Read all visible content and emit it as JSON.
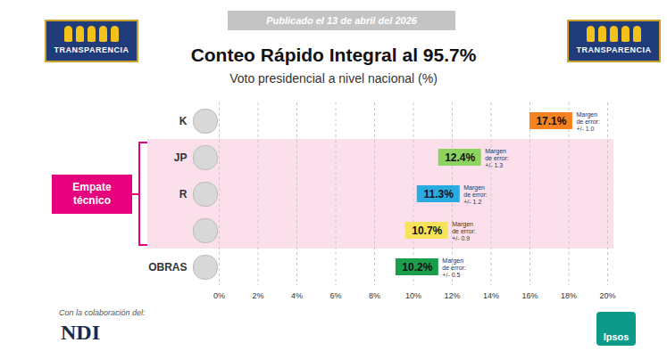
{
  "chart_data": {
    "type": "scatter",
    "marker": "square",
    "orientation": "horizontal",
    "note": "Publicado el 13 de abril del 2026",
    "brand": "TRANSPARENCIA",
    "title": "Conteo Rápido Integral al 95.7%",
    "subtitle": "Voto presidencial a nivel nacional (%)",
    "annotation": "Empate técnico",
    "footer": "Con la colaboración del:",
    "credits": [
      "NDI",
      "Ipsos"
    ],
    "categories": [
      "K",
      "JP",
      "R",
      null,
      "OBRAS"
    ],
    "values": [
      17.1,
      12.4,
      11.3,
      10.7,
      10.2
    ],
    "value_labels": [
      "17.1%",
      "12.4%",
      "11.3%",
      "10.7%",
      "10.2%"
    ],
    "error_labels": [
      "Margen de error: +/- 1.0",
      "Margen de error: +/- 1.3",
      "Margen de error: +/- 1.2",
      "Margen de error: +/- 0.9",
      "Margen de error: +/- 0.5"
    ],
    "colors": [
      "#f58220",
      "#8dd35f",
      "#29abe2",
      "#f7e35a",
      "#1b9e4b"
    ],
    "xlim": [
      0,
      20
    ],
    "xticks": [
      {
        "value": 0,
        "label": "0%"
      },
      {
        "value": 2,
        "label": "2%"
      },
      {
        "value": 4,
        "label": "4%"
      },
      {
        "value": 6,
        "label": "6%"
      },
      {
        "value": 8,
        "label": "8%"
      },
      {
        "value": 10,
        "label": "10%"
      },
      {
        "value": 12,
        "label": "12%"
      },
      {
        "value": 14,
        "label": "14%"
      },
      {
        "value": 16,
        "label": "16%"
      },
      {
        "value": 18,
        "label": "18%"
      },
      {
        "value": 20,
        "label": "20%"
      }
    ],
    "grid": true,
    "data_labels": true
  }
}
